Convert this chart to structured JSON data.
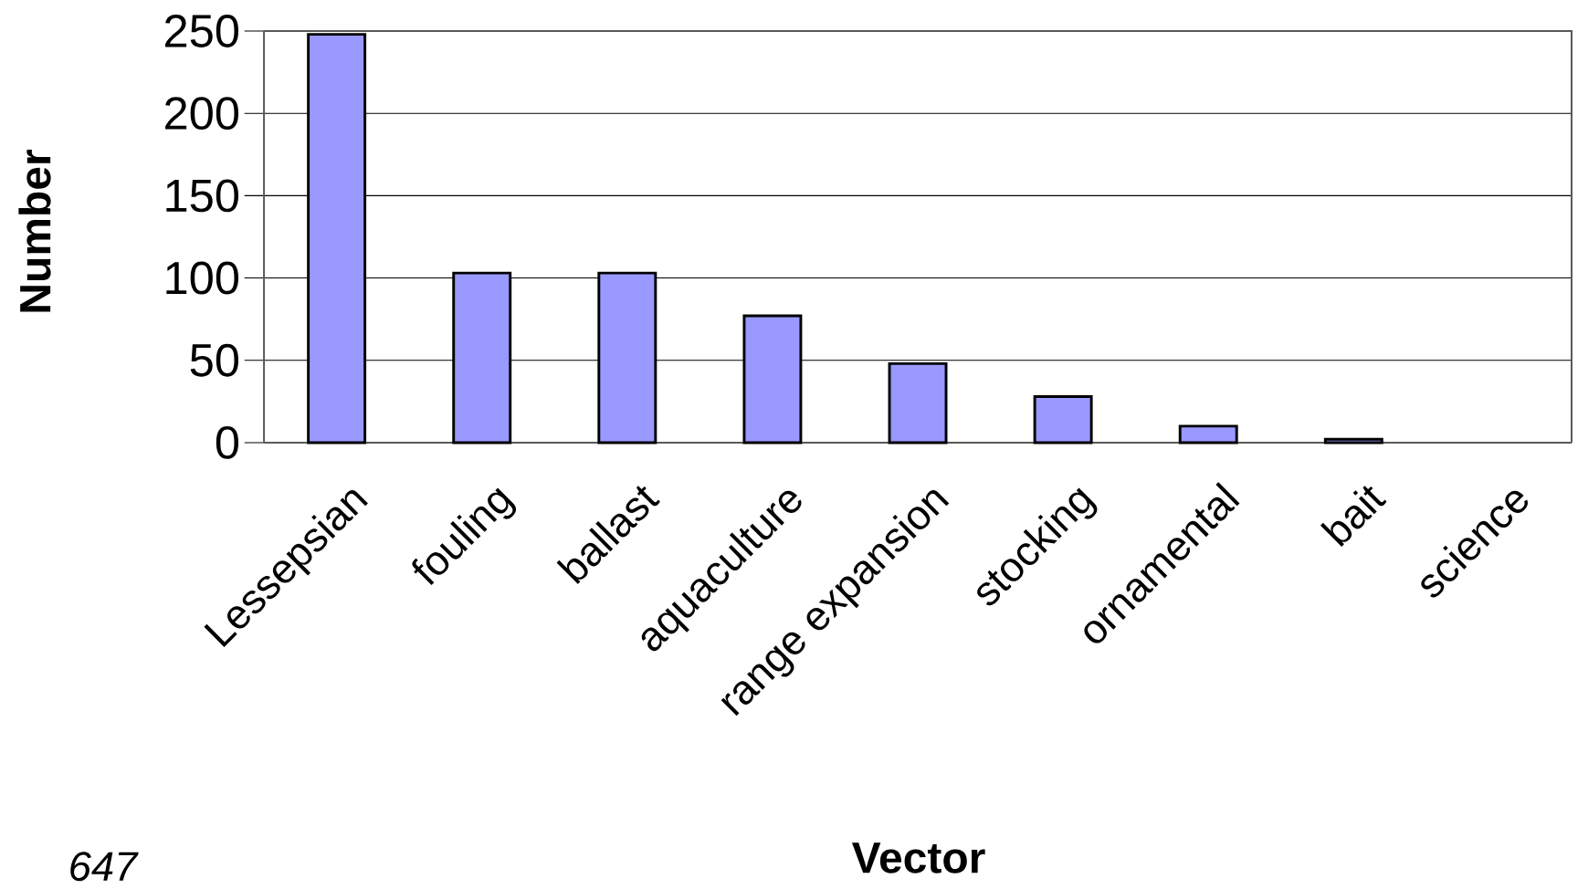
{
  "chart_data": {
    "type": "bar",
    "xlabel": "Vector",
    "ylabel": "Number",
    "categories": [
      "Lessepsian",
      "fouling",
      "ballast",
      "aquaculture",
      "range expansion",
      "stocking",
      "ornamental",
      "bait",
      "science"
    ],
    "values": [
      248,
      103,
      103,
      77,
      48,
      28,
      10,
      2,
      0
    ],
    "color": "#9999ff",
    "ylim": [
      0,
      250
    ],
    "yticks": [
      0,
      50,
      100,
      150,
      200,
      250
    ],
    "grid": "y",
    "annotations": [
      "*647*"
    ]
  }
}
